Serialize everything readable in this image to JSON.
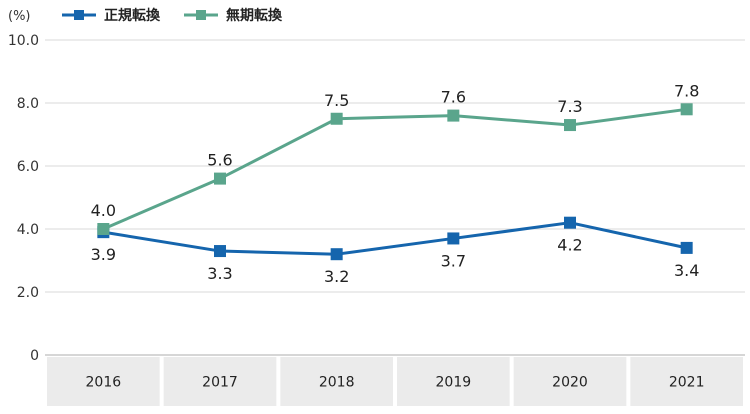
{
  "chart_data": {
    "type": "line",
    "unit_label": "(%)",
    "categories": [
      "2016",
      "2017",
      "2018",
      "2019",
      "2020",
      "2021"
    ],
    "ylim": [
      0,
      10
    ],
    "yticks": [
      "0",
      "2.0",
      "4.0",
      "6.0",
      "8.0",
      "10.0"
    ],
    "grid": true,
    "legend_position": "top-left",
    "series": [
      {
        "name": "正規転換",
        "color": "#1565ad",
        "values": [
          3.9,
          3.3,
          3.2,
          3.7,
          4.2,
          3.4
        ],
        "labels": [
          "3.9",
          "3.3",
          "3.2",
          "3.7",
          "4.2",
          "3.4"
        ],
        "label_side": [
          "below",
          "below",
          "below",
          "below",
          "below",
          "below"
        ]
      },
      {
        "name": "無期転換",
        "color": "#5aa58c",
        "values": [
          4.0,
          5.6,
          7.5,
          7.6,
          7.3,
          7.8
        ],
        "labels": [
          "4.0",
          "5.6",
          "7.5",
          "7.6",
          "7.3",
          "7.8"
        ],
        "label_side": [
          "above",
          "above",
          "above",
          "above",
          "above",
          "above"
        ]
      }
    ]
  }
}
